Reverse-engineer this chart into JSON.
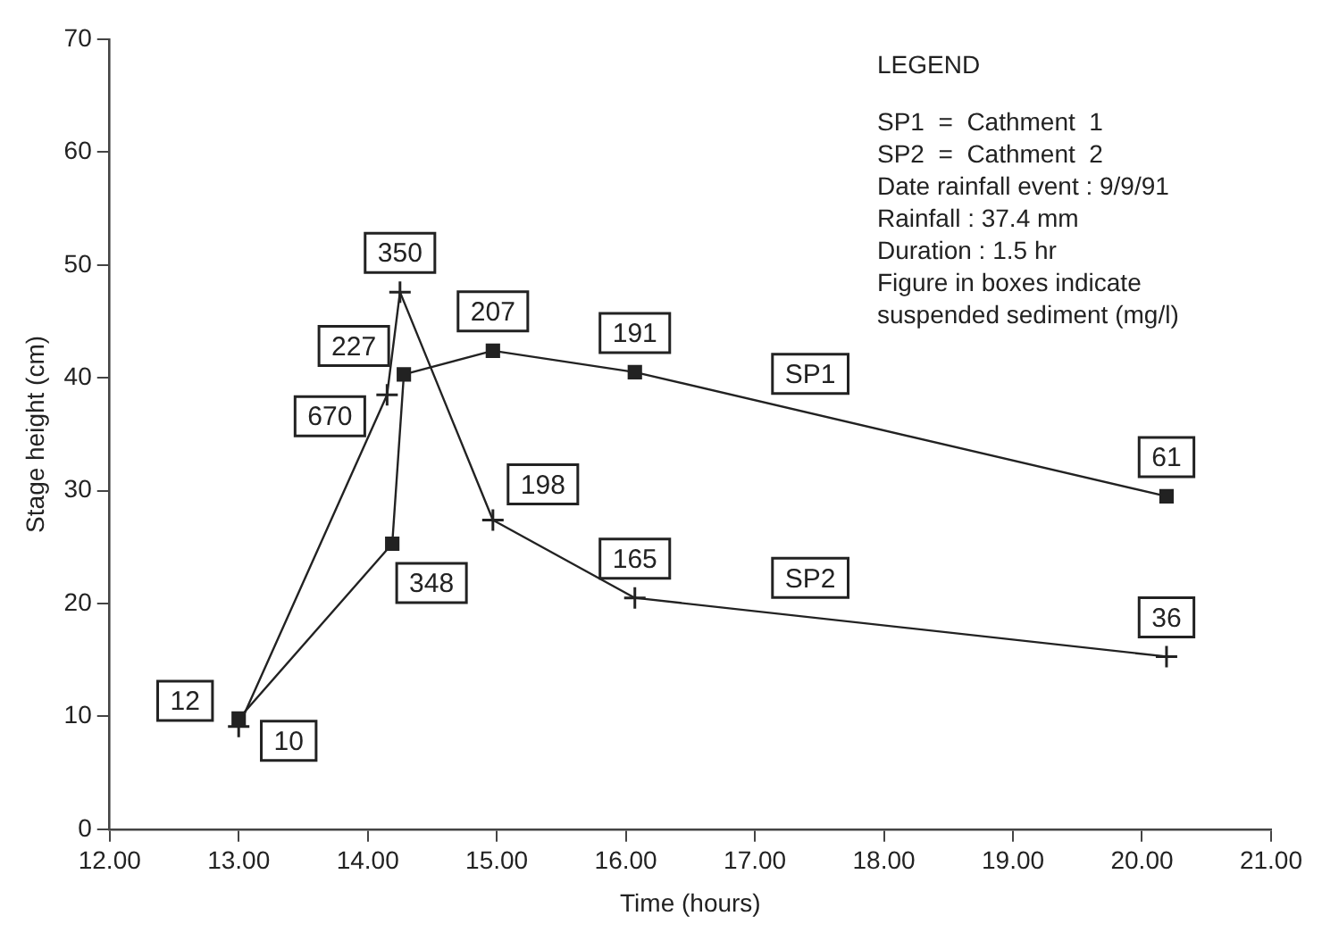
{
  "chart_data": {
    "type": "line",
    "xlabel": "Time (hours)",
    "ylabel": "Stage height (cm)",
    "xlim": [
      12,
      21
    ],
    "xticks": [
      {
        "value": 12,
        "label": "12.00"
      },
      {
        "value": 13,
        "label": "13.00"
      },
      {
        "value": 14,
        "label": "14.00"
      },
      {
        "value": 15,
        "label": "15.00"
      },
      {
        "value": 16,
        "label": "16.00"
      },
      {
        "value": 17,
        "label": "17.00"
      },
      {
        "value": 18,
        "label": "18.00"
      },
      {
        "value": 19,
        "label": "19.00"
      },
      {
        "value": 20,
        "label": "20.00"
      },
      {
        "value": 21,
        "label": "21.00"
      }
    ],
    "ylim": [
      0,
      70
    ],
    "yticks": [
      0,
      10,
      20,
      30,
      40,
      50,
      60,
      70
    ],
    "grid": false,
    "legend": false,
    "series": [
      {
        "name": "SP1",
        "color": "#222222",
        "marker": "square",
        "x": [
          13.0,
          14.19,
          14.28,
          14.97,
          16.07,
          20.19
        ],
        "values": [
          9.8,
          25.3,
          40.3,
          42.4,
          40.5,
          29.5
        ]
      },
      {
        "name": "SP2",
        "color": "#222222",
        "marker": "cross",
        "x": [
          13.0,
          14.15,
          14.25,
          14.97,
          16.07,
          20.19
        ],
        "values": [
          9.1,
          38.5,
          47.6,
          27.4,
          20.5,
          15.3
        ]
      }
    ],
    "annotations": [
      {
        "text": "12",
        "x": 13.0,
        "y": 9.8
      },
      {
        "text": "348",
        "x": 14.19,
        "y": 25.3
      },
      {
        "text": "227",
        "x": 14.28,
        "y": 40.3
      },
      {
        "text": "207",
        "x": 14.97,
        "y": 42.4
      },
      {
        "text": "191",
        "x": 16.07,
        "y": 40.5
      },
      {
        "text": "61",
        "x": 20.19,
        "y": 29.5
      },
      {
        "text": "10",
        "x": 13.0,
        "y": 9.1
      },
      {
        "text": "670",
        "x": 14.15,
        "y": 38.5
      },
      {
        "text": "350",
        "x": 14.25,
        "y": 47.6
      },
      {
        "text": "198",
        "x": 14.97,
        "y": 27.4
      },
      {
        "text": "165",
        "x": 16.07,
        "y": 20.5
      },
      {
        "text": "36",
        "x": 20.19,
        "y": 15.3
      },
      "LEGEND",
      "SP1  =  Cathment  1",
      "SP2  =  Cathment  2",
      "Date rainfall event : 9/9/91",
      "Rainfall : 37.4 mm",
      "Duration : 1.5 hr",
      "Figure in boxes indicate",
      "suspended sediment (mg/l)"
    ]
  }
}
